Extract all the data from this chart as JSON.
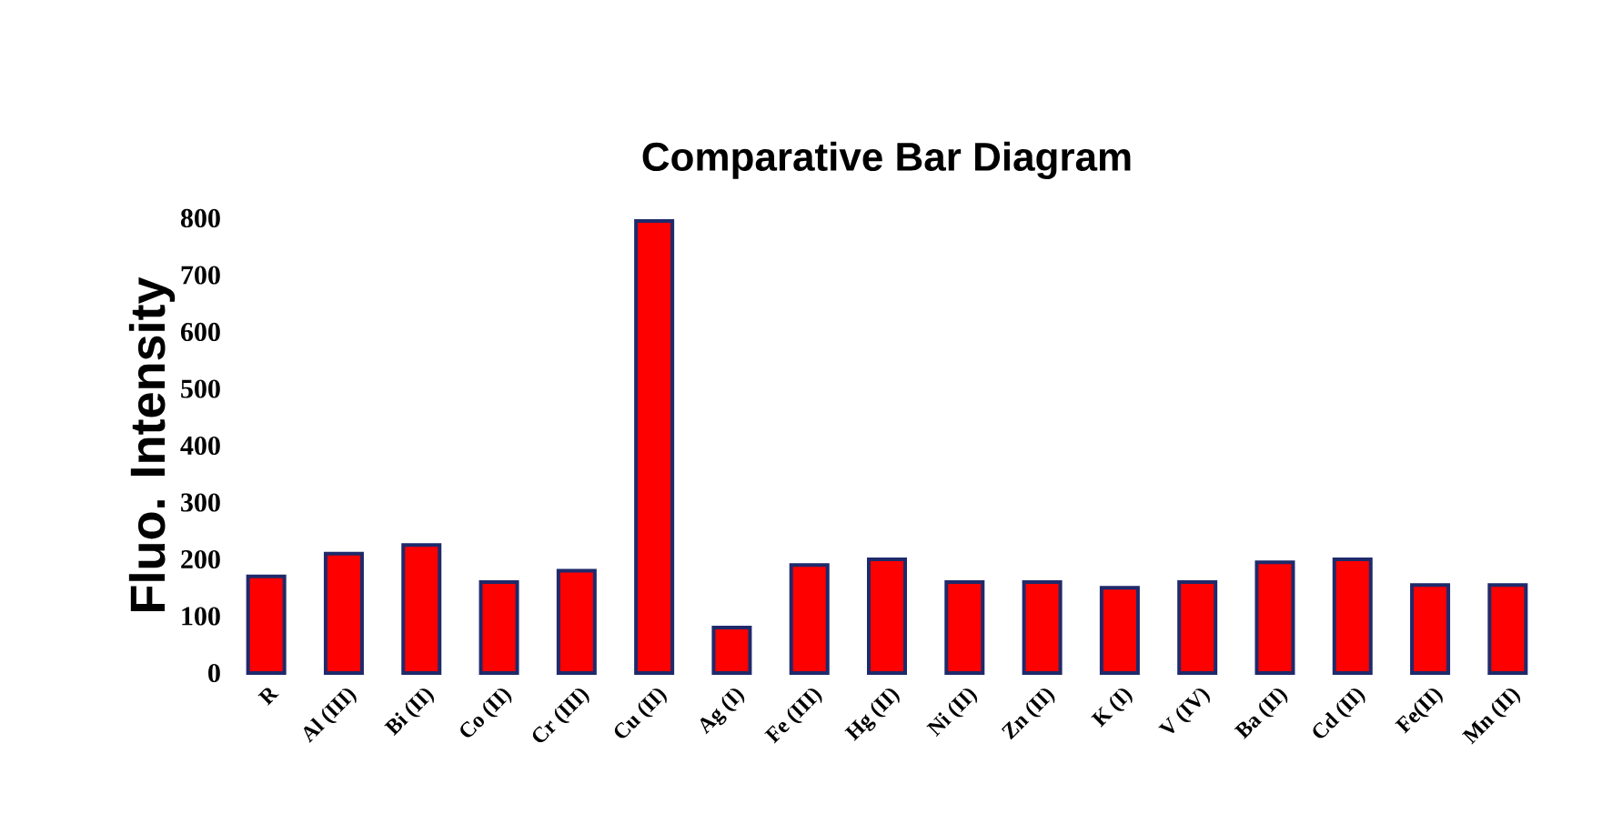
{
  "chart_data": {
    "type": "bar",
    "title": "Comparative Bar Diagram",
    "ylabel": "Fluo. Intensity",
    "categories": [
      "R",
      "Al (III)",
      "Bi (II)",
      "Co (II)",
      "Cr (III)",
      "Cu (II)",
      "Ag (I)",
      "Fe (III)",
      "Hg (II)",
      "Ni (II)",
      "Zn (II)",
      "K (I)",
      "V (IV)",
      "Ba (II)",
      "Cd (II)",
      "Fe(II)",
      "Mn (II)"
    ],
    "values": [
      170,
      210,
      225,
      160,
      180,
      795,
      80,
      190,
      200,
      160,
      160,
      150,
      160,
      195,
      200,
      155,
      155
    ],
    "color": "#ff0000",
    "ylim": [
      0,
      800
    ],
    "yticks": [
      0,
      100,
      200,
      300,
      400,
      500,
      600,
      700,
      800
    ]
  }
}
